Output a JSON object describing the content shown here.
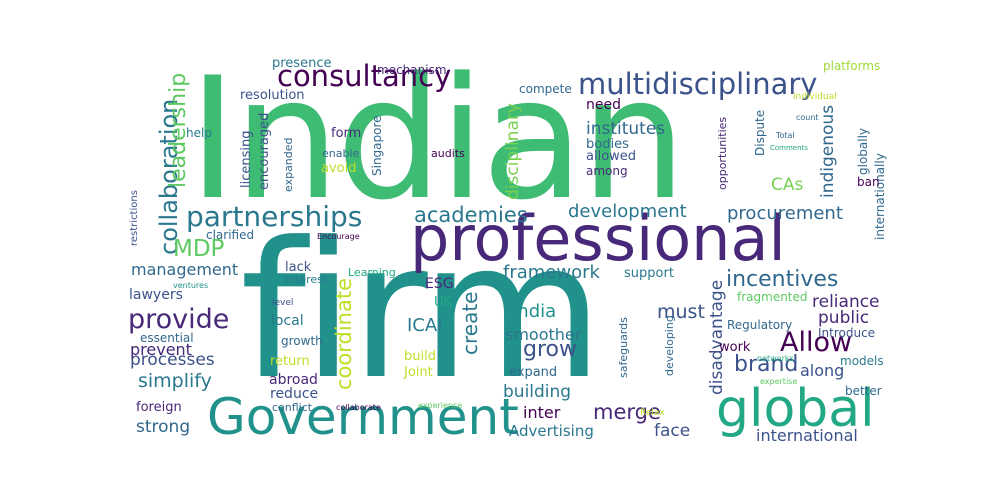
{
  "words": [
    {
      "text": "Indian",
      "color": "#3fbc73"
    },
    {
      "text": "firm",
      "color": "#21918c"
    },
    {
      "text": "professional",
      "color": "#482878"
    },
    {
      "text": "Government",
      "color": "#21918c"
    },
    {
      "text": "global",
      "color": "#22a884"
    },
    {
      "text": "multidisciplinary",
      "color": "#3b528b"
    },
    {
      "text": "consultancy",
      "color": "#440154"
    },
    {
      "text": "partnerships",
      "color": "#2a788e"
    },
    {
      "text": "collaboration",
      "color": "#2a788e"
    },
    {
      "text": "leadership",
      "color": "#5ec962"
    },
    {
      "text": "academies",
      "color": "#2a788e"
    },
    {
      "text": "development",
      "color": "#2a788e"
    },
    {
      "text": "procurement",
      "color": "#31688e"
    },
    {
      "text": "incentives",
      "color": "#31688e"
    },
    {
      "text": "Allow",
      "color": "#440154"
    },
    {
      "text": "provide",
      "color": "#482878"
    },
    {
      "text": "MDP",
      "color": "#5ec962"
    },
    {
      "text": "coordinate",
      "color": "#bddf26"
    },
    {
      "text": "create",
      "color": "#2a788e"
    },
    {
      "text": "grow",
      "color": "#3b528b"
    },
    {
      "text": "brand",
      "color": "#3b528b"
    },
    {
      "text": "merge",
      "color": "#482878"
    },
    {
      "text": "simplify",
      "color": "#2a788e"
    },
    {
      "text": "framework",
      "color": "#2a788e"
    },
    {
      "text": "institutes",
      "color": "#31688e"
    },
    {
      "text": "disciplinary",
      "color": "#7ad151"
    },
    {
      "text": "indigenous",
      "color": "#31688e"
    },
    {
      "text": "management",
      "color": "#31688e"
    },
    {
      "text": "must",
      "color": "#3b528b"
    },
    {
      "text": "ICAI",
      "color": "#2a788e"
    },
    {
      "text": "India",
      "color": "#21918c"
    },
    {
      "text": "smoother",
      "color": "#2a788e"
    },
    {
      "text": "building",
      "color": "#2a788e"
    },
    {
      "text": "public",
      "color": "#482878"
    },
    {
      "text": "reliance",
      "color": "#482878"
    },
    {
      "text": "strong",
      "color": "#31688e"
    },
    {
      "text": "processes",
      "color": "#3b528b"
    },
    {
      "text": "prevent",
      "color": "#482878"
    },
    {
      "text": "disadvantage",
      "color": "#3b528b"
    },
    {
      "text": "international",
      "color": "#3b528b"
    },
    {
      "text": "Advertising",
      "color": "#2a788e"
    },
    {
      "text": "inter",
      "color": "#440154"
    },
    {
      "text": "face",
      "color": "#3b528b"
    },
    {
      "text": "along",
      "color": "#3b528b"
    },
    {
      "text": "CAs",
      "color": "#7ad151"
    },
    {
      "text": "lawyers",
      "color": "#3b528b"
    },
    {
      "text": "presence",
      "color": "#2a788e"
    },
    {
      "text": "resolution",
      "color": "#3b528b"
    },
    {
      "text": "mechanism",
      "color": "#482878"
    },
    {
      "text": "compete",
      "color": "#31688e"
    },
    {
      "text": "need",
      "color": "#440154"
    },
    {
      "text": "platforms",
      "color": "#a0da39"
    },
    {
      "text": "individual",
      "color": "#bddf26"
    },
    {
      "text": "help",
      "color": "#2a788e"
    },
    {
      "text": "licensing",
      "color": "#3b528b"
    },
    {
      "text": "encouraged",
      "color": "#3b528b"
    },
    {
      "text": "form",
      "color": "#482878"
    },
    {
      "text": "enable",
      "color": "#31688e"
    },
    {
      "text": "avoid",
      "color": "#bddf26"
    },
    {
      "text": "Singapore",
      "color": "#31688e"
    },
    {
      "text": "audits",
      "color": "#440154"
    },
    {
      "text": "bodies",
      "color": "#31688e"
    },
    {
      "text": "allowed",
      "color": "#3b528b"
    },
    {
      "text": "among",
      "color": "#482878"
    },
    {
      "text": "count",
      "color": "#31688e"
    },
    {
      "text": "Total",
      "color": "#31688e"
    },
    {
      "text": "opportunities",
      "color": "#482878"
    },
    {
      "text": "Dispute",
      "color": "#31688e"
    },
    {
      "text": "Comments",
      "color": "#22a884"
    },
    {
      "text": "globally",
      "color": "#31688e"
    },
    {
      "text": "internationally",
      "color": "#31688e"
    },
    {
      "text": "ban",
      "color": "#440154"
    },
    {
      "text": "restrictions",
      "color": "#3b528b"
    },
    {
      "text": "expanded",
      "color": "#31688e"
    },
    {
      "text": "clarified",
      "color": "#31688e"
    },
    {
      "text": "Encourage",
      "color": "#440154"
    },
    {
      "text": "lack",
      "color": "#3b528b"
    },
    {
      "text": "interest",
      "color": "#2a788e"
    },
    {
      "text": "Learning",
      "color": "#22a884"
    },
    {
      "text": "ESG",
      "color": "#482878"
    },
    {
      "text": "UK",
      "color": "#22a884"
    },
    {
      "text": "support",
      "color": "#2a788e"
    },
    {
      "text": "fragmented",
      "color": "#5ec962"
    },
    {
      "text": "Regulatory",
      "color": "#31688e"
    },
    {
      "text": "Introduce",
      "color": "#3b528b"
    },
    {
      "text": "work",
      "color": "#440154"
    },
    {
      "text": "models",
      "color": "#2a788e"
    },
    {
      "text": "better",
      "color": "#31688e"
    },
    {
      "text": "networks",
      "color": "#22a884"
    },
    {
      "text": "expertise",
      "color": "#5ec962"
    },
    {
      "text": "ventures",
      "color": "#21918c"
    },
    {
      "text": "level",
      "color": "#3b528b"
    },
    {
      "text": "local",
      "color": "#2a788e"
    },
    {
      "text": "essential",
      "color": "#31688e"
    },
    {
      "text": "growth",
      "color": "#31688e"
    },
    {
      "text": "return",
      "color": "#bddf26"
    },
    {
      "text": "build",
      "color": "#bddf26"
    },
    {
      "text": "Joint",
      "color": "#bddf26"
    },
    {
      "text": "expand",
      "color": "#31688e"
    },
    {
      "text": "reduce",
      "color": "#3b528b"
    },
    {
      "text": "abroad",
      "color": "#482878"
    },
    {
      "text": "conflict",
      "color": "#31688e"
    },
    {
      "text": "foreign",
      "color": "#482878"
    },
    {
      "text": "collaborate",
      "color": "#440154"
    },
    {
      "text": "experience",
      "color": "#5ec962"
    },
    {
      "text": "Relax",
      "color": "#bddf26"
    },
    {
      "text": "safeguards",
      "color": "#31688e"
    },
    {
      "text": "developing",
      "color": "#31688e"
    }
  ]
}
